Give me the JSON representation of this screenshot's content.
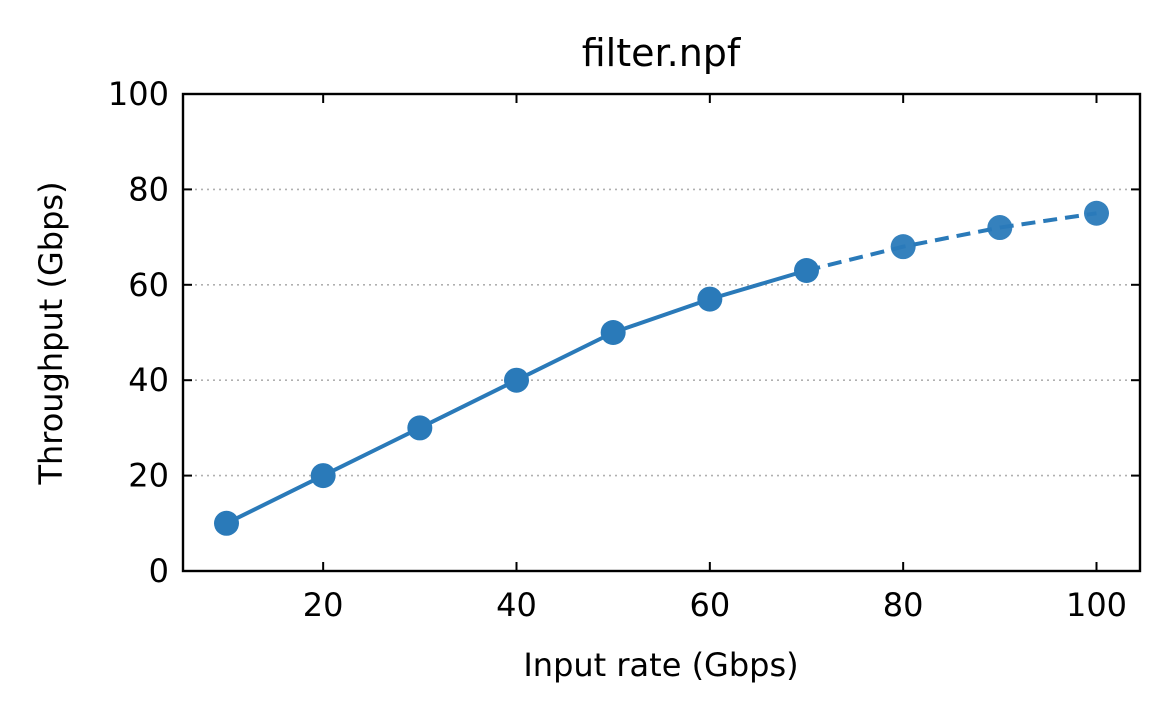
{
  "chart_data": {
    "type": "line",
    "title": "filter.npf",
    "xlabel": "Input rate (Gbps)",
    "ylabel": "Throughput (Gbps)",
    "xlim": [
      5.5,
      104.5
    ],
    "ylim": [
      0,
      100
    ],
    "xticks": [
      20,
      40,
      60,
      80,
      100
    ],
    "yticks": [
      0,
      20,
      40,
      60,
      80,
      100
    ],
    "grid": "y-dotted",
    "series": [
      {
        "color": "#2a7ab9",
        "x": [
          10,
          20,
          30,
          40,
          50,
          60,
          70,
          80,
          90,
          100
        ],
        "values": [
          10,
          20,
          30,
          40,
          50,
          57,
          63,
          68,
          72,
          75
        ],
        "solid_until_index": 6
      }
    ]
  }
}
